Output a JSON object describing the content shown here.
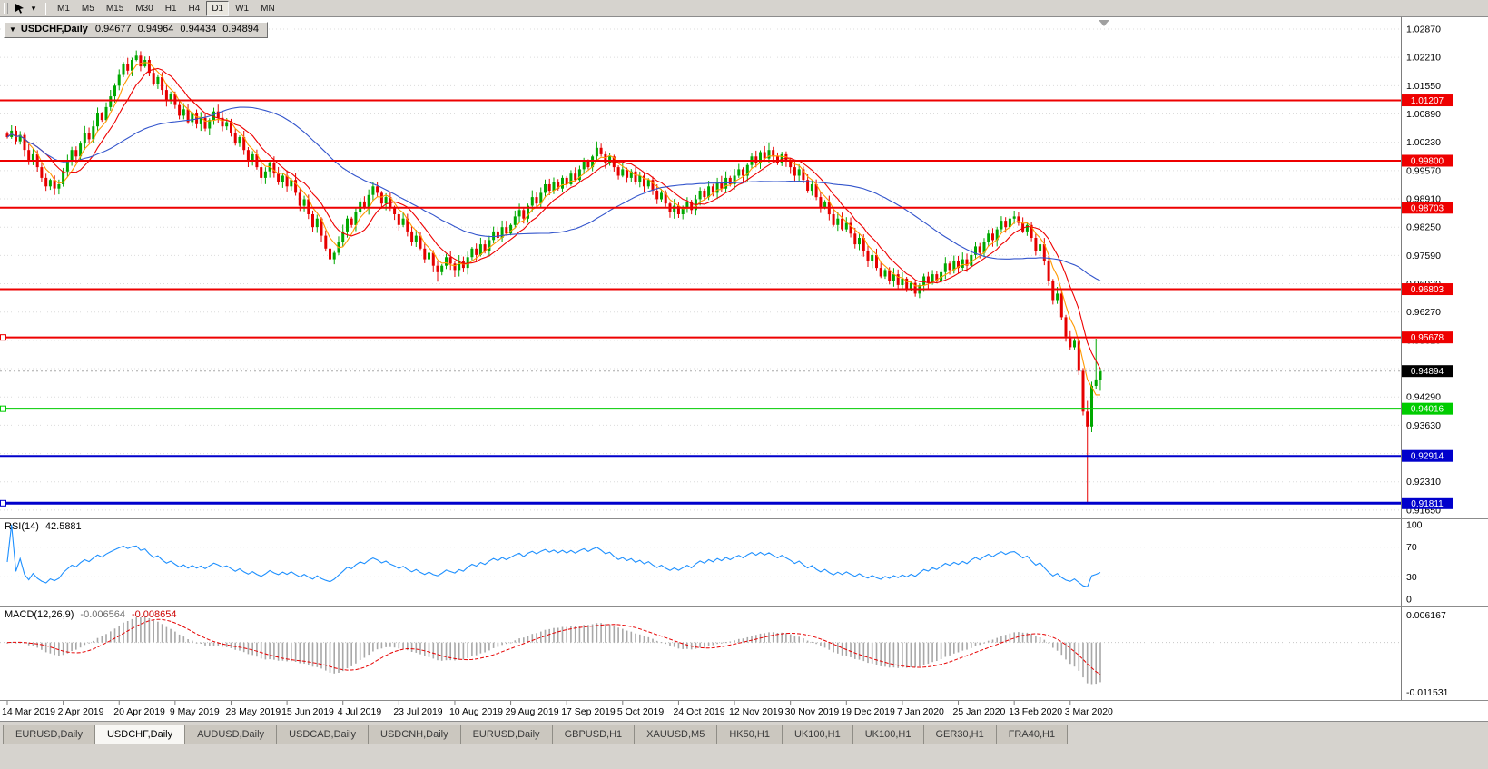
{
  "toolbar": {
    "timeframes": [
      "M1",
      "M5",
      "M15",
      "M30",
      "H1",
      "H4",
      "D1",
      "W1",
      "MN"
    ],
    "active_timeframe": "D1"
  },
  "chart": {
    "symbol_label": "USDCHF,Daily",
    "ohlc": {
      "open": "0.94677",
      "high": "0.94964",
      "low": "0.94434",
      "close": "0.94894"
    },
    "current_price": {
      "label": "0.94894",
      "value": 0.94894,
      "box_color": "#000000"
    },
    "price_ticks": [
      "1.02870",
      "1.02210",
      "1.01550",
      "1.00890",
      "1.00230",
      "0.99570",
      "0.98910",
      "0.98250",
      "0.97590",
      "0.96930",
      "0.96270",
      "0.95610",
      "0.94950",
      "0.94290",
      "0.93630",
      "0.92970",
      "0.92310",
      "0.91650"
    ],
    "levels": [
      {
        "value": 1.01207,
        "label": "1.01207",
        "color": "#ee0000",
        "width": 2,
        "left_marker": false
      },
      {
        "value": 0.998,
        "label": "0.99800",
        "color": "#ee0000",
        "width": 2,
        "left_marker": false
      },
      {
        "value": 0.98703,
        "label": "0.98703",
        "color": "#ee0000",
        "width": 2,
        "left_marker": false
      },
      {
        "value": 0.96803,
        "label": "0.96803",
        "color": "#ee0000",
        "width": 2,
        "left_marker": false
      },
      {
        "value": 0.95678,
        "label": "0.95678",
        "color": "#ee0000",
        "width": 2,
        "left_marker": true
      },
      {
        "value": 0.94016,
        "label": "0.94016",
        "color": "#00cc00",
        "width": 2,
        "left_marker": true
      },
      {
        "value": 0.92914,
        "label": "0.92914",
        "color": "#0000cc",
        "width": 2,
        "left_marker": false
      },
      {
        "value": 0.91811,
        "label": "0.91811",
        "color": "#0000cc",
        "width": 3,
        "left_marker": true
      }
    ]
  },
  "chart_data": {
    "type": "candlestick",
    "symbol": "USDCHF",
    "timeframe": "Daily",
    "ylim": [
      0.9146,
      1.0315
    ],
    "up_color": "#00a800",
    "down_color": "#e60000",
    "x_labels": {
      "start_index": 0,
      "step": 13,
      "labels": [
        "14 Mar 2019",
        "2 Apr 2019",
        "20 Apr 2019",
        "9 May 2019",
        "28 May 2019",
        "15 Jun 2019",
        "4 Jul 2019",
        "23 Jul 2019",
        "10 Aug 2019",
        "29 Aug 2019",
        "17 Sep 2019",
        "5 Oct 2019",
        "24 Oct 2019",
        "12 Nov 2019",
        "30 Nov 2019",
        "19 Dec 2019",
        "7 Jan 2020",
        "25 Jan 2020",
        "13 Feb 2020",
        "3 Mar 2020"
      ]
    },
    "closes": [
      1.0035,
      1.005,
      1.0025,
      1.004,
      1.0005,
      0.998,
      0.9995,
      0.9965,
      0.994,
      0.992,
      0.9935,
      0.9915,
      0.9925,
      0.9955,
      0.998,
      1.0005,
      0.999,
      1.002,
      1.0045,
      1.003,
      1.006,
      1.009,
      1.0075,
      1.0105,
      1.013,
      1.0155,
      1.018,
      1.0205,
      1.019,
      1.0215,
      1.0225,
      1.02,
      1.0215,
      1.0185,
      1.016,
      1.0175,
      1.0145,
      1.012,
      1.0135,
      1.011,
      1.0085,
      1.01,
      1.007,
      1.009,
      1.0065,
      1.008,
      1.0055,
      1.0075,
      1.0095,
      1.008,
      1.006,
      1.007,
      1.0045,
      1.002,
      1.0035,
      1.0005,
      0.998,
      0.9995,
      0.9965,
      0.994,
      0.9955,
      0.9975,
      0.995,
      0.993,
      0.9945,
      0.992,
      0.9935,
      0.9905,
      0.9875,
      0.989,
      0.9855,
      0.9825,
      0.9845,
      0.9805,
      0.9775,
      0.975,
      0.9765,
      0.979,
      0.9815,
      0.9845,
      0.983,
      0.986,
      0.9885,
      0.987,
      0.99,
      0.992,
      0.9905,
      0.988,
      0.9895,
      0.987,
      0.9855,
      0.983,
      0.9845,
      0.9815,
      0.979,
      0.9805,
      0.9775,
      0.975,
      0.9765,
      0.9735,
      0.972,
      0.9735,
      0.9755,
      0.974,
      0.9725,
      0.9745,
      0.973,
      0.9755,
      0.9775,
      0.976,
      0.9785,
      0.977,
      0.9795,
      0.9815,
      0.98,
      0.9825,
      0.981,
      0.983,
      0.985,
      0.9865,
      0.9845,
      0.9875,
      0.9895,
      0.988,
      0.9905,
      0.9925,
      0.991,
      0.993,
      0.9915,
      0.994,
      0.9925,
      0.995,
      0.9935,
      0.996,
      0.998,
      0.9965,
      0.999,
      1.001,
      0.9995,
      0.9975,
      0.999,
      0.9965,
      0.9945,
      0.996,
      0.994,
      0.9955,
      0.993,
      0.9945,
      0.992,
      0.9935,
      0.991,
      0.989,
      0.9905,
      0.988,
      0.986,
      0.9875,
      0.9855,
      0.987,
      0.9885,
      0.9865,
      0.989,
      0.991,
      0.9895,
      0.992,
      0.9905,
      0.993,
      0.9915,
      0.994,
      0.9925,
      0.9945,
      0.996,
      0.9945,
      0.997,
      0.999,
      0.9975,
      1.0,
      0.9985,
      1.0005,
      0.999,
      0.9975,
      0.9995,
      0.998,
      0.9965,
      0.9945,
      0.996,
      0.9935,
      0.991,
      0.9925,
      0.9895,
      0.987,
      0.9885,
      0.9855,
      0.983,
      0.9845,
      0.982,
      0.9835,
      0.981,
      0.9785,
      0.98,
      0.977,
      0.9745,
      0.976,
      0.973,
      0.971,
      0.9725,
      0.97,
      0.9715,
      0.969,
      0.9705,
      0.968,
      0.9695,
      0.967,
      0.969,
      0.971,
      0.9695,
      0.9715,
      0.97,
      0.972,
      0.974,
      0.9725,
      0.9745,
      0.973,
      0.975,
      0.9735,
      0.976,
      0.978,
      0.9765,
      0.979,
      0.981,
      0.9795,
      0.982,
      0.984,
      0.9825,
      0.9845,
      0.985,
      0.9835,
      0.9815,
      0.983,
      0.98,
      0.977,
      0.9785,
      0.9745,
      0.97,
      0.9655,
      0.967,
      0.9615,
      0.957,
      0.9545,
      0.956,
      0.949,
      0.9395,
      0.936,
      0.9455,
      0.947,
      0.94894
    ],
    "special_candles": {
      "30": {
        "h": 1.0237
      },
      "75": {
        "l": 0.9718
      },
      "100": {
        "l": 0.9698
      },
      "137": {
        "h": 1.0025
      },
      "177": {
        "h": 1.0023
      },
      "211": {
        "l": 0.9663
      },
      "251": {
        "h": 0.942,
        "l": 0.9181
      },
      "253": {
        "h": 0.9565
      },
      "254": {
        "o": 0.94677,
        "h": 0.94964,
        "l": 0.94434,
        "c": 0.94894
      }
    },
    "overlays": [
      {
        "name": "ma-fast-line",
        "type": "sma",
        "period": 5,
        "color": "#ff9900"
      },
      {
        "name": "ma-medium-line",
        "type": "sma",
        "period": 10,
        "color": "#ee0000"
      },
      {
        "name": "ma-slow-line",
        "type": "sma",
        "period": 40,
        "color": "#3355cc"
      }
    ]
  },
  "rsi": {
    "name": "RSI(14)",
    "value": "42.5881",
    "color": "#1e90ff",
    "guides": [
      70,
      30
    ],
    "axis_ticks": [
      "100",
      "70",
      "30",
      "0"
    ],
    "range": [
      0,
      100
    ]
  },
  "macd": {
    "name": "MACD(12,26,9)",
    "value_main": "-0.006564",
    "value_signal": "-0.008654",
    "axis_top": "0.006167",
    "axis_bottom": "-0.011531",
    "hist_color": "#a8a8a8",
    "signal_color": "#e60000"
  },
  "tabs": [
    {
      "label": "EURUSD,Daily",
      "active": false
    },
    {
      "label": "USDCHF,Daily",
      "active": true
    },
    {
      "label": "AUDUSD,Daily",
      "active": false
    },
    {
      "label": "USDCAD,Daily",
      "active": false
    },
    {
      "label": "USDCNH,Daily",
      "active": false
    },
    {
      "label": "EURUSD,Daily",
      "active": false
    },
    {
      "label": "GBPUSD,H1",
      "active": false
    },
    {
      "label": "XAUUSD,M5",
      "active": false
    },
    {
      "label": "HK50,H1",
      "active": false
    },
    {
      "label": "UK100,H1",
      "active": false
    },
    {
      "label": "UK100,H1",
      "active": false
    },
    {
      "label": "GER30,H1",
      "active": false
    },
    {
      "label": "FRA40,H1",
      "active": false
    }
  ]
}
